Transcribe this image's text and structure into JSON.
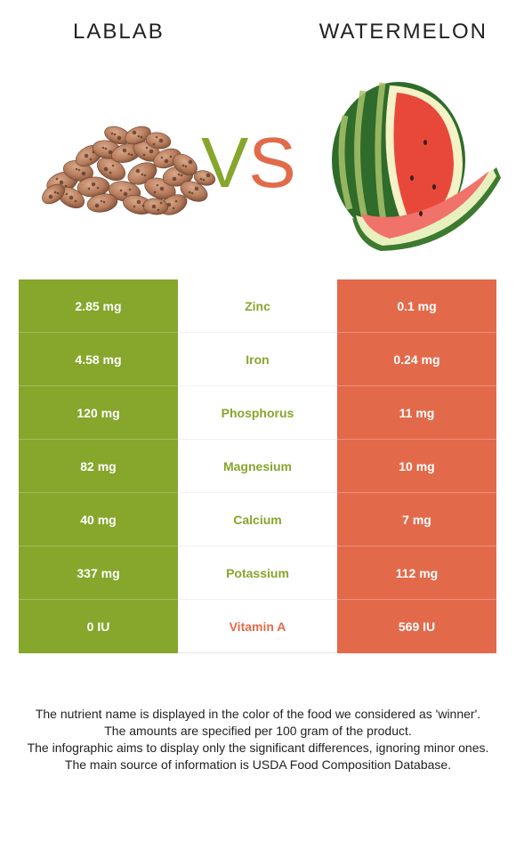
{
  "header": {
    "left_food": "LABLAB",
    "right_food": "WATERMELON",
    "vs_v": "V",
    "vs_s": "S"
  },
  "colors": {
    "left": "#86a62c",
    "right": "#e26a4a"
  },
  "images": {
    "left": "lablab-beans-image",
    "right": "watermelon-image"
  },
  "rows": [
    {
      "left": "2.85 mg",
      "nutrient": "Zinc",
      "right": "0.1 mg",
      "winner": "left"
    },
    {
      "left": "4.58 mg",
      "nutrient": "Iron",
      "right": "0.24 mg",
      "winner": "left"
    },
    {
      "left": "120 mg",
      "nutrient": "Phosphorus",
      "right": "11 mg",
      "winner": "left"
    },
    {
      "left": "82 mg",
      "nutrient": "Magnesium",
      "right": "10 mg",
      "winner": "left"
    },
    {
      "left": "40 mg",
      "nutrient": "Calcium",
      "right": "7 mg",
      "winner": "left"
    },
    {
      "left": "337 mg",
      "nutrient": "Potassium",
      "right": "112 mg",
      "winner": "left"
    },
    {
      "left": "0 IU",
      "nutrient": "Vitamin A",
      "right": "569 IU",
      "winner": "right"
    }
  ],
  "notes": [
    "The nutrient name is displayed in the color of the food we considered as 'winner'.",
    "The amounts are specified per 100 gram of the product.",
    "The infographic aims to display only the significant differences, ignoring minor ones.",
    "The main source of information is USDA Food Composition Database."
  ]
}
